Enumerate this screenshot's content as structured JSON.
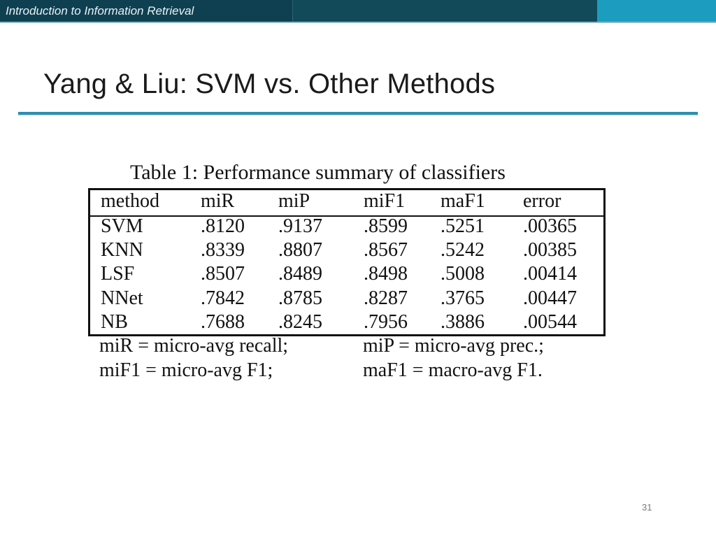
{
  "header": {
    "course_title": "Introduction to Information Retrieval"
  },
  "slide": {
    "title": "Yang & Liu: SVM vs. Other Methods",
    "page_number": "31"
  },
  "table": {
    "caption": "Table 1: Performance summary of classifiers",
    "columns": [
      "method",
      "miR",
      "miP",
      "miF1",
      "maF1",
      "error"
    ],
    "rows": [
      [
        "SVM",
        ".8120",
        ".9137",
        ".8599",
        ".5251",
        ".00365"
      ],
      [
        "KNN",
        ".8339",
        ".8807",
        ".8567",
        ".5242",
        ".00385"
      ],
      [
        "LSF",
        ".8507",
        ".8489",
        ".8498",
        ".5008",
        ".00414"
      ],
      [
        "NNet",
        ".7842",
        ".8785",
        ".8287",
        ".3765",
        ".00447"
      ],
      [
        "NB",
        ".7688",
        ".8245",
        ".7956",
        ".3886",
        ".00544"
      ]
    ],
    "footnotes": [
      [
        "miR = micro-avg recall;",
        "miP = micro-avg prec.;"
      ],
      [
        "miF1 = micro-avg F1;",
        "maF1 = macro-avg F1."
      ]
    ]
  }
}
